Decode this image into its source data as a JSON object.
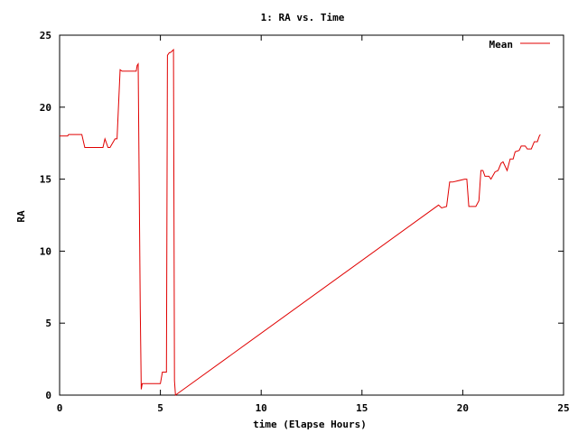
{
  "chart_data": {
    "type": "line",
    "title": "1: RA vs. Time",
    "xlabel": "time (Elapse Hours)",
    "ylabel": "RA",
    "xlim": [
      0,
      25
    ],
    "ylim": [
      0,
      25
    ],
    "x_ticks": [
      0,
      5,
      10,
      15,
      20,
      25
    ],
    "y_ticks": [
      0,
      5,
      10,
      15,
      20,
      25
    ],
    "x_tick_labels": [
      "0",
      "5",
      "10",
      "15",
      "20",
      "25"
    ],
    "y_tick_labels": [
      "0",
      "5",
      "10",
      "15",
      "20",
      "25"
    ],
    "grid": false,
    "legend_position": "top-right",
    "series": [
      {
        "name": "Mean",
        "color": "#e00000",
        "x": [
          0,
          0.4,
          0.45,
          1.1,
          1.25,
          2.15,
          2.25,
          2.4,
          2.5,
          2.75,
          2.85,
          3.0,
          3.1,
          3.8,
          3.85,
          3.9,
          4.0,
          4.05,
          4.1,
          4.2,
          4.3,
          5.0,
          5.1,
          5.3,
          5.35,
          5.45,
          5.5,
          5.65,
          5.7,
          5.75,
          18.8,
          18.95,
          19.2,
          19.35,
          19.5,
          20.1,
          20.2,
          20.3,
          20.65,
          20.8,
          20.9,
          21.0,
          21.1,
          21.3,
          21.4,
          21.6,
          21.75,
          21.9,
          22.0,
          22.2,
          22.35,
          22.5,
          22.6,
          22.8,
          22.9,
          23.1,
          23.2,
          23.4,
          23.55,
          23.7,
          23.8,
          23.85
        ],
        "y": [
          18.0,
          18.0,
          18.1,
          18.1,
          17.2,
          17.2,
          17.8,
          17.2,
          17.2,
          17.8,
          17.8,
          22.6,
          22.5,
          22.5,
          22.9,
          23.0,
          6.0,
          0.4,
          0.8,
          0.8,
          0.8,
          0.8,
          1.6,
          1.6,
          23.6,
          23.8,
          23.8,
          24.0,
          1.0,
          0.0,
          13.2,
          13.0,
          13.1,
          14.8,
          14.8,
          15.0,
          15.0,
          13.1,
          13.1,
          13.5,
          15.6,
          15.6,
          15.2,
          15.2,
          15.0,
          15.5,
          15.6,
          16.1,
          16.2,
          15.6,
          16.4,
          16.4,
          16.9,
          17.0,
          17.3,
          17.3,
          17.1,
          17.1,
          17.6,
          17.6,
          18.0,
          18.1
        ]
      }
    ]
  }
}
